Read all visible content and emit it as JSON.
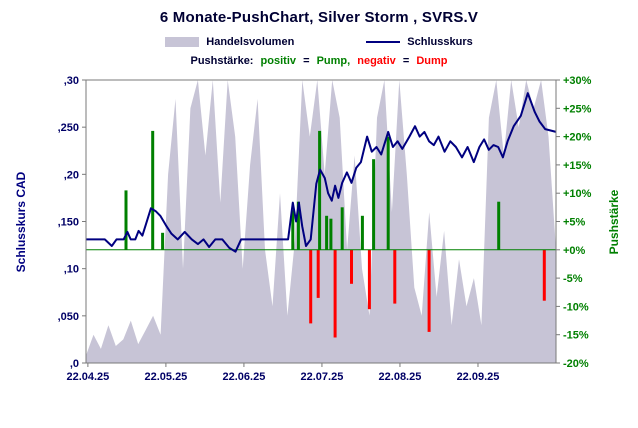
{
  "title": "6 Monate-PushChart, Silver Storm , SVRS.V",
  "legend": {
    "volume_label": "Handelsvolumen",
    "close_label": "Schlusskurs"
  },
  "legend2": {
    "prefix": "Pushstärke:",
    "positiv": "positiv",
    "eq1": "=",
    "pump": "Pump,",
    "negativ": "negativ",
    "eq2": "=",
    "dump": "Dump"
  },
  "colors": {
    "navy_text": "#000066",
    "line_navy": "#000080",
    "pump_green": "#008000",
    "dump_red": "#ff0000",
    "volume_fill": "#c7c4d6",
    "frame_gray": "#7a7a7a",
    "title_color": "#000033"
  },
  "chart_data": {
    "type": "composite",
    "title": "6 Monate-PushChart, Silver Storm , SVRS.V",
    "x_axis": {
      "tick_labels": [
        "22.04.25",
        "22.05.25",
        "22.06.25",
        "22.07.25",
        "22.08.25",
        "22.09.25"
      ],
      "tick_positions": [
        0.004,
        0.17,
        0.336,
        0.502,
        0.668,
        0.834
      ]
    },
    "left_axis": {
      "title": "Schlusskurs CAD",
      "min": 0,
      "max": 0.3,
      "tick_values": [
        0.3,
        0.25,
        0.2,
        0.15,
        0.1,
        0.05,
        0
      ],
      "tick_labels": [
        ",30",
        ",250",
        ",20",
        ",150",
        ",10",
        ",050",
        ",0"
      ]
    },
    "right_axis": {
      "title": "Pushstärke",
      "min": -20,
      "max": 30,
      "tick_values": [
        30,
        25,
        20,
        15,
        10,
        5,
        0,
        -5,
        -10,
        -15,
        -20
      ],
      "tick_labels": [
        "+30%",
        "+25%",
        "+20%",
        "+15%",
        "+10%",
        "+5%",
        "+0%",
        "-5%",
        "-10%",
        "-15%",
        "-20%"
      ]
    },
    "series": {
      "close": {
        "name": "Schlusskurs",
        "color": "#000080",
        "points": [
          [
            0.0,
            0.131
          ],
          [
            0.04,
            0.131
          ],
          [
            0.055,
            0.124
          ],
          [
            0.065,
            0.131
          ],
          [
            0.08,
            0.131
          ],
          [
            0.088,
            0.139
          ],
          [
            0.095,
            0.131
          ],
          [
            0.105,
            0.131
          ],
          [
            0.112,
            0.14
          ],
          [
            0.12,
            0.135
          ],
          [
            0.128,
            0.148
          ],
          [
            0.138,
            0.164
          ],
          [
            0.148,
            0.161
          ],
          [
            0.158,
            0.156
          ],
          [
            0.17,
            0.146
          ],
          [
            0.182,
            0.137
          ],
          [
            0.195,
            0.131
          ],
          [
            0.21,
            0.139
          ],
          [
            0.225,
            0.131
          ],
          [
            0.238,
            0.126
          ],
          [
            0.25,
            0.131
          ],
          [
            0.262,
            0.123
          ],
          [
            0.275,
            0.131
          ],
          [
            0.29,
            0.131
          ],
          [
            0.305,
            0.122
          ],
          [
            0.318,
            0.118
          ],
          [
            0.33,
            0.131
          ],
          [
            0.43,
            0.131
          ],
          [
            0.44,
            0.17
          ],
          [
            0.447,
            0.15
          ],
          [
            0.453,
            0.17
          ],
          [
            0.46,
            0.145
          ],
          [
            0.468,
            0.124
          ],
          [
            0.478,
            0.131
          ],
          [
            0.49,
            0.19
          ],
          [
            0.498,
            0.205
          ],
          [
            0.508,
            0.196
          ],
          [
            0.515,
            0.18
          ],
          [
            0.523,
            0.172
          ],
          [
            0.53,
            0.188
          ],
          [
            0.537,
            0.175
          ],
          [
            0.545,
            0.191
          ],
          [
            0.555,
            0.202
          ],
          [
            0.565,
            0.191
          ],
          [
            0.575,
            0.207
          ],
          [
            0.585,
            0.213
          ],
          [
            0.598,
            0.24
          ],
          [
            0.608,
            0.224
          ],
          [
            0.618,
            0.229
          ],
          [
            0.628,
            0.221
          ],
          [
            0.643,
            0.245
          ],
          [
            0.653,
            0.229
          ],
          [
            0.663,
            0.235
          ],
          [
            0.673,
            0.227
          ],
          [
            0.688,
            0.24
          ],
          [
            0.7,
            0.251
          ],
          [
            0.71,
            0.24
          ],
          [
            0.72,
            0.245
          ],
          [
            0.73,
            0.235
          ],
          [
            0.74,
            0.231
          ],
          [
            0.75,
            0.24
          ],
          [
            0.763,
            0.224
          ],
          [
            0.775,
            0.235
          ],
          [
            0.787,
            0.229
          ],
          [
            0.8,
            0.218
          ],
          [
            0.812,
            0.229
          ],
          [
            0.825,
            0.213
          ],
          [
            0.837,
            0.229
          ],
          [
            0.847,
            0.237
          ],
          [
            0.857,
            0.226
          ],
          [
            0.867,
            0.231
          ],
          [
            0.877,
            0.229
          ],
          [
            0.887,
            0.218
          ],
          [
            0.897,
            0.235
          ],
          [
            0.91,
            0.251
          ],
          [
            0.925,
            0.262
          ],
          [
            0.94,
            0.286
          ],
          [
            0.955,
            0.266
          ],
          [
            0.965,
            0.256
          ],
          [
            0.977,
            0.248
          ],
          [
            1.0,
            0.245
          ]
        ]
      },
      "volume": {
        "name": "Handelsvolumen",
        "color": "#c7c4d6",
        "values": [
          0.008,
          0.03,
          0.015,
          0.04,
          0.018,
          0.025,
          0.045,
          0.02,
          0.035,
          0.05,
          0.03,
          0.2,
          0.28,
          0.1,
          0.27,
          0.3,
          0.22,
          0.3,
          0.17,
          0.3,
          0.24,
          0.1,
          0.21,
          0.28,
          0.12,
          0.06,
          0.18,
          0.05,
          0.13,
          0.3,
          0.24,
          0.3,
          0.2,
          0.3,
          0.26,
          0.12,
          0.22,
          0.1,
          0.05,
          0.26,
          0.3,
          0.16,
          0.3,
          0.2,
          0.08,
          0.05,
          0.16,
          0.07,
          0.14,
          0.04,
          0.11,
          0.06,
          0.09,
          0.04,
          0.26,
          0.3,
          0.22,
          0.3,
          0.25,
          0.3,
          0.27,
          0.3,
          0.24,
          0.12
        ]
      },
      "push": {
        "name": "Pushstärke",
        "pump_color": "#008000",
        "dump_color": "#ff0000",
        "bars": [
          [
            0.085,
            10.5
          ],
          [
            0.142,
            21.0
          ],
          [
            0.163,
            3.0
          ],
          [
            0.44,
            7.0
          ],
          [
            0.452,
            8.5
          ],
          [
            0.478,
            -13.0
          ],
          [
            0.494,
            -8.5
          ],
          [
            0.497,
            21.0
          ],
          [
            0.512,
            6.0
          ],
          [
            0.521,
            5.5
          ],
          [
            0.53,
            -15.5
          ],
          [
            0.545,
            7.5
          ],
          [
            0.565,
            -6.0
          ],
          [
            0.588,
            6.0
          ],
          [
            0.603,
            -10.5
          ],
          [
            0.612,
            16.0
          ],
          [
            0.643,
            20.0
          ],
          [
            0.657,
            -9.5
          ],
          [
            0.73,
            -14.5
          ],
          [
            0.878,
            8.5
          ],
          [
            0.975,
            -9.0
          ]
        ]
      }
    }
  }
}
